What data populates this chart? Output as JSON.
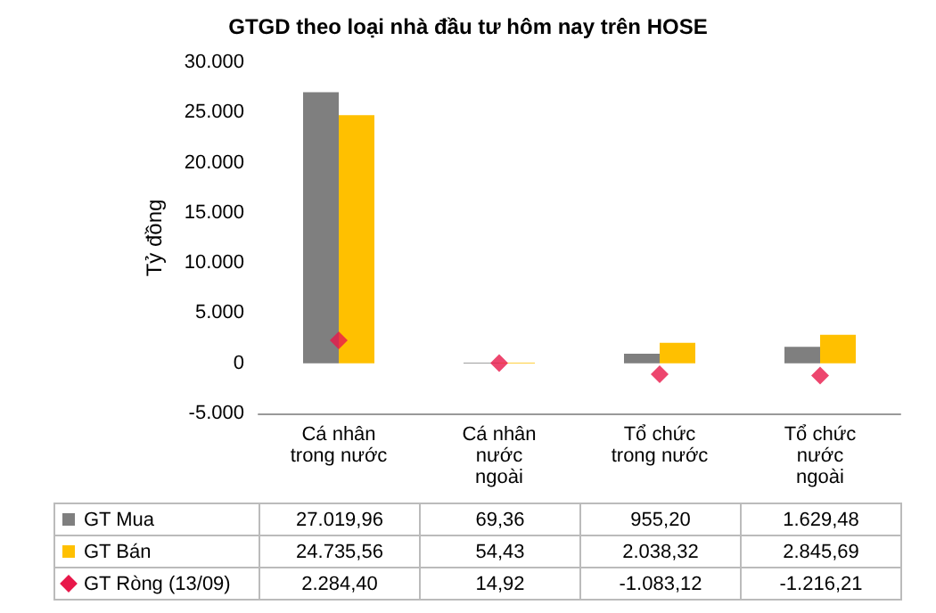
{
  "chart_data": {
    "type": "bar",
    "title": "GTGD theo loại nhà đầu tư hôm nay trên HOSE",
    "ylabel": "Tỷ đồng",
    "categories": [
      "Cá nhân\ntrong nước",
      "Cá nhân\nnước\nngoài",
      "Tổ chức\ntrong nước",
      "Tổ chức\nnước\nngoài"
    ],
    "series": [
      {
        "name": "GT Mua",
        "color": "#7f7f7f",
        "values": [
          27019.96,
          69.36,
          955.2,
          1629.48
        ],
        "value_labels": [
          "27.019,96",
          "69,36",
          "955,20",
          "1.629,48"
        ]
      },
      {
        "name": "GT Bán",
        "color": "#ffc000",
        "values": [
          24735.56,
          54.43,
          2038.32,
          2845.69
        ],
        "value_labels": [
          "24.735,56",
          "54,43",
          "2.038,32",
          "2.845,69"
        ]
      },
      {
        "name": "GT Ròng (13/09)",
        "type": "scatter",
        "marker": "diamond",
        "color": "#e8184a",
        "x": [
          "Cá nhân\ntrong nước",
          "Cá nhân\nnước\nngoài",
          "Tổ chức\ntrong nước",
          "Tổ chức\nnước\nngoài"
        ],
        "values": [
          2284.4,
          14.92,
          -1083.12,
          -1216.21
        ],
        "value_labels": [
          "2.284,40",
          "14,92",
          "-1.083,12",
          "-1.216,21"
        ]
      }
    ],
    "ylim": [
      -5000,
      30000
    ],
    "yticks": [
      {
        "value": -5000,
        "label": "-5.000"
      },
      {
        "value": 0,
        "label": "0"
      },
      {
        "value": 5000,
        "label": "5.000"
      },
      {
        "value": 10000,
        "label": "10.000"
      },
      {
        "value": 15000,
        "label": "15.000"
      },
      {
        "value": 20000,
        "label": "20.000"
      },
      {
        "value": 25000,
        "label": "25.000"
      },
      {
        "value": 30000,
        "label": "30.000"
      }
    ],
    "grid": false,
    "legend": "bottom left"
  }
}
